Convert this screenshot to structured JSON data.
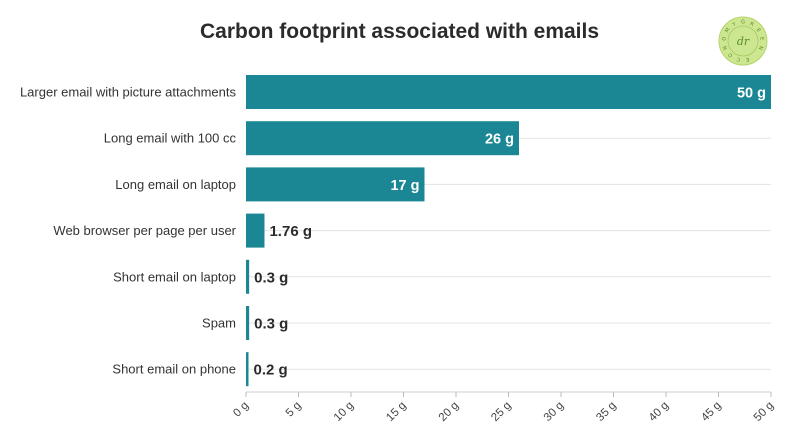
{
  "chart_data": {
    "type": "bar",
    "orientation": "horizontal",
    "title": "Carbon footprint associated with emails",
    "categories": [
      "Larger email with picture attachments",
      "Long email with 100 cc",
      "Long email on laptop",
      "Web browser per page per user",
      "Short email on laptop",
      "Spam",
      "Short email on phone"
    ],
    "values": [
      50,
      26,
      17,
      1.76,
      0.3,
      0.3,
      0.2
    ],
    "value_labels": [
      "50 g",
      "26 g",
      "17 g",
      "1.76 g",
      "0.3 g",
      "0.3 g",
      "0.2 g"
    ],
    "xlim": [
      0,
      50
    ],
    "xticks": [
      "0 g",
      "5 g",
      "10 g",
      "15 g",
      "20 g",
      "25 g",
      "30 g",
      "35 g",
      "40 g",
      "45 g",
      "50 g"
    ],
    "grid": true,
    "bar_color": "#1b8694"
  },
  "logo": {
    "text": "GREEN ECONOMY",
    "mark": "dr",
    "color": "#c8e48a"
  }
}
